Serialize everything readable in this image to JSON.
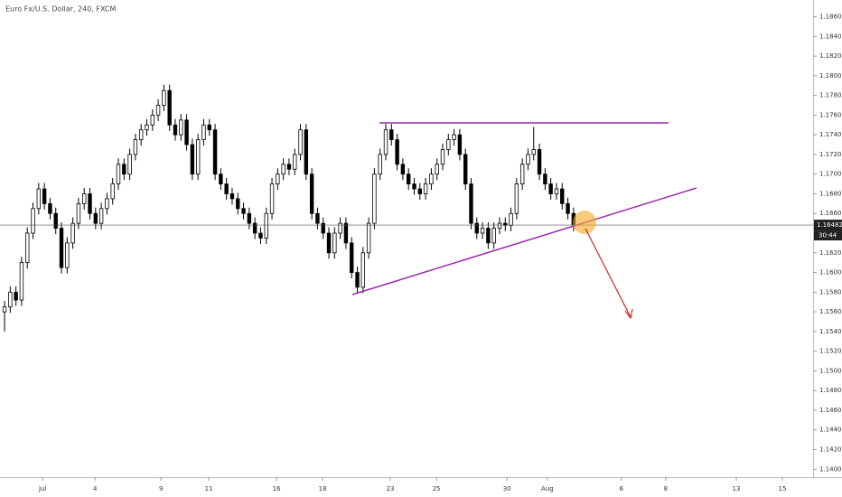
{
  "chart_data": {
    "type": "candlestick",
    "title": "Euro Fx/U.S. Dollar, 240, FXCM",
    "open": [
      1.156,
      1.1565,
      1.158,
      1.1572,
      1.161,
      1.164,
      1.1665,
      1.1685,
      1.167,
      1.166,
      1.1645,
      1.1605,
      1.163,
      1.165,
      1.167,
      1.168,
      1.166,
      1.165,
      1.1665,
      1.1675,
      1.169,
      1.171,
      1.17,
      1.172,
      1.1735,
      1.1745,
      1.175,
      1.176,
      1.177,
      1.1785,
      1.175,
      1.174,
      1.1755,
      1.173,
      1.17,
      1.1735,
      1.175,
      1.1745,
      1.17,
      1.169,
      1.168,
      1.1675,
      1.1665,
      1.166,
      1.165,
      1.164,
      1.1635,
      1.166,
      1.169,
      1.17,
      1.171,
      1.1705,
      1.172,
      1.1745,
      1.17,
      1.166,
      1.165,
      1.164,
      1.162,
      1.164,
      1.165,
      1.163,
      1.16,
      1.1585,
      1.162,
      1.165,
      1.17,
      1.172,
      1.1745,
      1.1735,
      1.171,
      1.17,
      1.169,
      1.1685,
      1.168,
      1.169,
      1.17,
      1.171,
      1.1725,
      1.1735,
      1.174,
      1.172,
      1.169,
      1.165,
      1.164,
      1.1645,
      1.163,
      1.1645,
      1.165,
      1.1648,
      1.166,
      1.169,
      1.171,
      1.172,
      1.1725,
      1.17,
      1.169,
      1.168,
      1.1685,
      1.167,
      1.166
    ],
    "high": [
      1.1571,
      1.1586,
      1.1586,
      1.1616,
      1.1646,
      1.1671,
      1.1691,
      1.1691,
      1.1676,
      1.1666,
      1.1651,
      1.1636,
      1.1656,
      1.1676,
      1.1686,
      1.1686,
      1.1666,
      1.1671,
      1.1681,
      1.1696,
      1.1716,
      1.1716,
      1.1726,
      1.1741,
      1.1751,
      1.1756,
      1.1766,
      1.1776,
      1.1791,
      1.1791,
      1.1756,
      1.1761,
      1.1761,
      1.1736,
      1.1741,
      1.1756,
      1.1756,
      1.1751,
      1.1706,
      1.1696,
      1.1686,
      1.1681,
      1.1671,
      1.1666,
      1.1656,
      1.1646,
      1.1666,
      1.1696,
      1.1706,
      1.1716,
      1.1716,
      1.1726,
      1.1751,
      1.1751,
      1.1706,
      1.1666,
      1.1656,
      1.1646,
      1.1646,
      1.1656,
      1.1656,
      1.1636,
      1.1606,
      1.1626,
      1.1656,
      1.1706,
      1.1726,
      1.1751,
      1.1751,
      1.1741,
      1.1716,
      1.1706,
      1.1696,
      1.1691,
      1.1696,
      1.1706,
      1.1716,
      1.1731,
      1.1741,
      1.1746,
      1.1746,
      1.1726,
      1.1696,
      1.1656,
      1.1651,
      1.1651,
      1.1651,
      1.1656,
      1.1656,
      1.1666,
      1.1696,
      1.1716,
      1.1726,
      1.1748,
      1.1731,
      1.1706,
      1.1696,
      1.1691,
      1.1691,
      1.1676,
      1.1666
    ],
    "low": [
      1.154,
      1.1559,
      1.1566,
      1.1566,
      1.1604,
      1.1634,
      1.1659,
      1.1664,
      1.1654,
      1.1639,
      1.1599,
      1.1599,
      1.1624,
      1.1644,
      1.1664,
      1.1654,
      1.1644,
      1.1644,
      1.1659,
      1.1669,
      1.1684,
      1.1694,
      1.1694,
      1.1714,
      1.1729,
      1.1739,
      1.1744,
      1.1754,
      1.1764,
      1.1744,
      1.1734,
      1.1734,
      1.1724,
      1.1694,
      1.1694,
      1.1729,
      1.1739,
      1.1694,
      1.1684,
      1.1674,
      1.1669,
      1.1659,
      1.1654,
      1.1644,
      1.1634,
      1.1629,
      1.1629,
      1.1654,
      1.1684,
      1.1694,
      1.1699,
      1.1699,
      1.1714,
      1.1694,
      1.1654,
      1.1644,
      1.1634,
      1.1614,
      1.1614,
      1.1634,
      1.1624,
      1.1594,
      1.1579,
      1.1579,
      1.1614,
      1.1644,
      1.1694,
      1.1714,
      1.1729,
      1.1704,
      1.1694,
      1.1684,
      1.1679,
      1.1674,
      1.1674,
      1.1684,
      1.1694,
      1.1704,
      1.1719,
      1.1729,
      1.1714,
      1.1684,
      1.1644,
      1.1634,
      1.1634,
      1.1624,
      1.1624,
      1.1639,
      1.1642,
      1.1642,
      1.1654,
      1.1684,
      1.1704,
      1.1714,
      1.1694,
      1.1684,
      1.1674,
      1.1674,
      1.1664,
      1.1654,
      1.1642
    ],
    "close": [
      1.1565,
      1.158,
      1.1572,
      1.161,
      1.164,
      1.1665,
      1.1685,
      1.167,
      1.166,
      1.1645,
      1.1605,
      1.163,
      1.165,
      1.167,
      1.168,
      1.166,
      1.165,
      1.1665,
      1.1675,
      1.169,
      1.171,
      1.17,
      1.172,
      1.1735,
      1.1745,
      1.175,
      1.176,
      1.177,
      1.1785,
      1.175,
      1.174,
      1.1755,
      1.173,
      1.17,
      1.1735,
      1.175,
      1.1745,
      1.17,
      1.169,
      1.168,
      1.1675,
      1.1665,
      1.166,
      1.165,
      1.164,
      1.1635,
      1.166,
      1.169,
      1.17,
      1.171,
      1.1705,
      1.172,
      1.1745,
      1.17,
      1.166,
      1.165,
      1.164,
      1.162,
      1.164,
      1.165,
      1.163,
      1.16,
      1.1585,
      1.162,
      1.165,
      1.17,
      1.172,
      1.1745,
      1.1735,
      1.171,
      1.17,
      1.169,
      1.1685,
      1.168,
      1.169,
      1.17,
      1.171,
      1.1725,
      1.1735,
      1.174,
      1.172,
      1.169,
      1.165,
      1.164,
      1.1645,
      1.163,
      1.1645,
      1.165,
      1.1648,
      1.166,
      1.169,
      1.171,
      1.172,
      1.1725,
      1.17,
      1.169,
      1.168,
      1.1685,
      1.167,
      1.166,
      1.16482
    ],
    "up_color": "#ffffff",
    "down_color": "#000000",
    "xlim": [
      -0.8,
      142.1
    ],
    "ylim": [
      1.1392,
      1.1877
    ],
    "xticks": [
      {
        "value": 6.7,
        "label": "Jul"
      },
      {
        "value": 15.9,
        "label": "4"
      },
      {
        "value": 27.5,
        "label": "9"
      },
      {
        "value": 35.9,
        "label": "11"
      },
      {
        "value": 47.8,
        "label": "16"
      },
      {
        "value": 55.9,
        "label": "18"
      },
      {
        "value": 67.8,
        "label": "23"
      },
      {
        "value": 75.9,
        "label": "25"
      },
      {
        "value": 88.3,
        "label": "30"
      },
      {
        "value": 95.4,
        "label": "Aug"
      },
      {
        "value": 108.4,
        "label": "6"
      },
      {
        "value": 116.2,
        "label": "8"
      },
      {
        "value": 128.6,
        "label": "13"
      },
      {
        "value": 136.7,
        "label": "15"
      }
    ],
    "yticks": [
      {
        "value": 1.14,
        "label": "1.14000"
      },
      {
        "value": 1.142,
        "label": "1.14200"
      },
      {
        "value": 1.144,
        "label": "1.14400"
      },
      {
        "value": 1.146,
        "label": "1.14600"
      },
      {
        "value": 1.148,
        "label": "1.14800"
      },
      {
        "value": 1.15,
        "label": "1.15000"
      },
      {
        "value": 1.152,
        "label": "1.15200"
      },
      {
        "value": 1.154,
        "label": "1.15400"
      },
      {
        "value": 1.156,
        "label": "1.15600"
      },
      {
        "value": 1.158,
        "label": "1.15800"
      },
      {
        "value": 1.16,
        "label": "1.16000"
      },
      {
        "value": 1.162,
        "label": "1.16200"
      },
      {
        "value": 1.164,
        "label": "1.16400"
      },
      {
        "value": 1.166,
        "label": "1.16600"
      },
      {
        "value": 1.168,
        "label": "1.16800"
      },
      {
        "value": 1.17,
        "label": "1.17000"
      },
      {
        "value": 1.172,
        "label": "1.17200"
      },
      {
        "value": 1.174,
        "label": "1.17400"
      },
      {
        "value": 1.176,
        "label": "1.17600"
      },
      {
        "value": 1.178,
        "label": "1.17800"
      },
      {
        "value": 1.18,
        "label": "1.18000"
      },
      {
        "value": 1.182,
        "label": "1.18200"
      },
      {
        "value": 1.184,
        "label": "1.18400"
      },
      {
        "value": 1.186,
        "label": "1.18600"
      }
    ],
    "last_price": {
      "value": 1.16482,
      "label": "1.16482"
    },
    "countdown": "30:44"
  }
}
